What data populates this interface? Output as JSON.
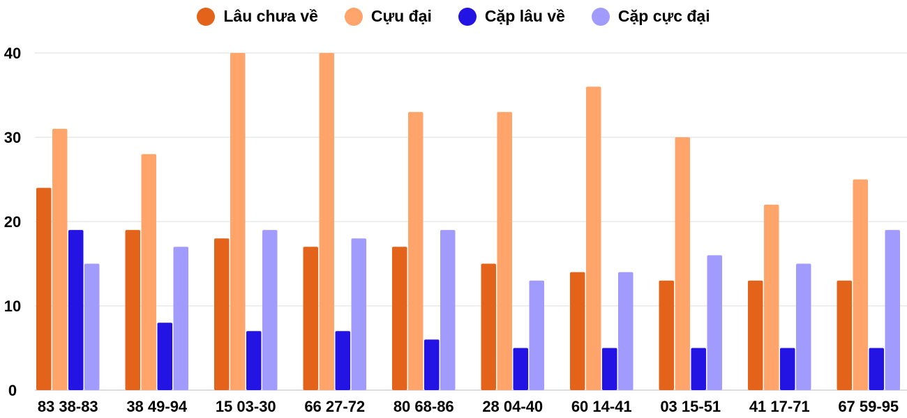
{
  "chart_data": {
    "type": "bar",
    "title": "",
    "xlabel": "",
    "ylabel": "",
    "ylim": [
      0,
      40
    ],
    "yticks": [
      0,
      10,
      20,
      30,
      40
    ],
    "grid": true,
    "legend_position": "top",
    "categories": [
      "83 38-83",
      "38 49-94",
      "15 03-30",
      "66 27-72",
      "80 68-86",
      "28 04-40",
      "60 14-41",
      "03 15-51",
      "41 17-71",
      "67 59-95"
    ],
    "series": [
      {
        "name": "Lâu chưa về",
        "color": "#E3631A",
        "values": [
          24,
          19,
          18,
          17,
          17,
          15,
          14,
          13,
          13,
          13
        ]
      },
      {
        "name": "Cựu đại",
        "color": "#FFA46B",
        "values": [
          31,
          28,
          40,
          40,
          33,
          33,
          36,
          30,
          22,
          25
        ]
      },
      {
        "name": "Cặp lâu về",
        "color": "#2414E3",
        "values": [
          19,
          8,
          7,
          7,
          6,
          5,
          5,
          5,
          5,
          5
        ]
      },
      {
        "name": "Cặp cực đại",
        "color": "#A29BFE",
        "values": [
          15,
          17,
          19,
          18,
          19,
          13,
          14,
          16,
          15,
          19
        ]
      }
    ]
  }
}
